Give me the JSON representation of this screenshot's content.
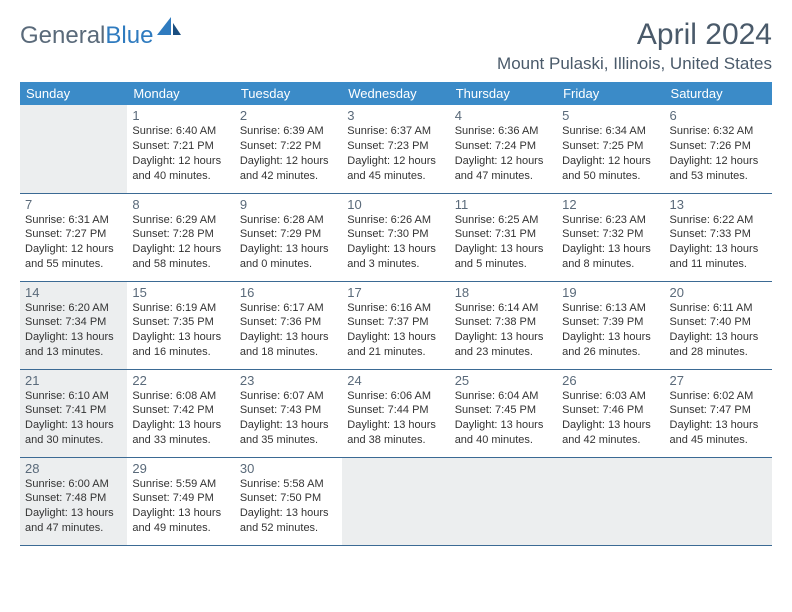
{
  "brand": {
    "part1": "General",
    "part2": "Blue"
  },
  "title": "April 2024",
  "location": "Mount Pulaski, Illinois, United States",
  "colors": {
    "header_bg": "#3b8bc8",
    "header_fg": "#ffffff",
    "border": "#3b6a94",
    "shaded": "#eceeef",
    "text": "#333333",
    "muted": "#5a6a7a",
    "brand_blue": "#2f7bbf"
  },
  "weekdays": [
    "Sunday",
    "Monday",
    "Tuesday",
    "Wednesday",
    "Thursday",
    "Friday",
    "Saturday"
  ],
  "weeks": [
    [
      {
        "empty": true
      },
      {
        "day": "1",
        "sunrise": "Sunrise: 6:40 AM",
        "sunset": "Sunset: 7:21 PM",
        "daylight": "Daylight: 12 hours and 40 minutes."
      },
      {
        "day": "2",
        "sunrise": "Sunrise: 6:39 AM",
        "sunset": "Sunset: 7:22 PM",
        "daylight": "Daylight: 12 hours and 42 minutes."
      },
      {
        "day": "3",
        "sunrise": "Sunrise: 6:37 AM",
        "sunset": "Sunset: 7:23 PM",
        "daylight": "Daylight: 12 hours and 45 minutes."
      },
      {
        "day": "4",
        "sunrise": "Sunrise: 6:36 AM",
        "sunset": "Sunset: 7:24 PM",
        "daylight": "Daylight: 12 hours and 47 minutes."
      },
      {
        "day": "5",
        "sunrise": "Sunrise: 6:34 AM",
        "sunset": "Sunset: 7:25 PM",
        "daylight": "Daylight: 12 hours and 50 minutes."
      },
      {
        "day": "6",
        "sunrise": "Sunrise: 6:32 AM",
        "sunset": "Sunset: 7:26 PM",
        "daylight": "Daylight: 12 hours and 53 minutes."
      }
    ],
    [
      {
        "day": "7",
        "sunrise": "Sunrise: 6:31 AM",
        "sunset": "Sunset: 7:27 PM",
        "daylight": "Daylight: 12 hours and 55 minutes."
      },
      {
        "day": "8",
        "sunrise": "Sunrise: 6:29 AM",
        "sunset": "Sunset: 7:28 PM",
        "daylight": "Daylight: 12 hours and 58 minutes."
      },
      {
        "day": "9",
        "sunrise": "Sunrise: 6:28 AM",
        "sunset": "Sunset: 7:29 PM",
        "daylight": "Daylight: 13 hours and 0 minutes."
      },
      {
        "day": "10",
        "sunrise": "Sunrise: 6:26 AM",
        "sunset": "Sunset: 7:30 PM",
        "daylight": "Daylight: 13 hours and 3 minutes."
      },
      {
        "day": "11",
        "sunrise": "Sunrise: 6:25 AM",
        "sunset": "Sunset: 7:31 PM",
        "daylight": "Daylight: 13 hours and 5 minutes."
      },
      {
        "day": "12",
        "sunrise": "Sunrise: 6:23 AM",
        "sunset": "Sunset: 7:32 PM",
        "daylight": "Daylight: 13 hours and 8 minutes."
      },
      {
        "day": "13",
        "sunrise": "Sunrise: 6:22 AM",
        "sunset": "Sunset: 7:33 PM",
        "daylight": "Daylight: 13 hours and 11 minutes."
      }
    ],
    [
      {
        "day": "14",
        "shaded": true,
        "sunrise": "Sunrise: 6:20 AM",
        "sunset": "Sunset: 7:34 PM",
        "daylight": "Daylight: 13 hours and 13 minutes."
      },
      {
        "day": "15",
        "sunrise": "Sunrise: 6:19 AM",
        "sunset": "Sunset: 7:35 PM",
        "daylight": "Daylight: 13 hours and 16 minutes."
      },
      {
        "day": "16",
        "sunrise": "Sunrise: 6:17 AM",
        "sunset": "Sunset: 7:36 PM",
        "daylight": "Daylight: 13 hours and 18 minutes."
      },
      {
        "day": "17",
        "sunrise": "Sunrise: 6:16 AM",
        "sunset": "Sunset: 7:37 PM",
        "daylight": "Daylight: 13 hours and 21 minutes."
      },
      {
        "day": "18",
        "sunrise": "Sunrise: 6:14 AM",
        "sunset": "Sunset: 7:38 PM",
        "daylight": "Daylight: 13 hours and 23 minutes."
      },
      {
        "day": "19",
        "sunrise": "Sunrise: 6:13 AM",
        "sunset": "Sunset: 7:39 PM",
        "daylight": "Daylight: 13 hours and 26 minutes."
      },
      {
        "day": "20",
        "sunrise": "Sunrise: 6:11 AM",
        "sunset": "Sunset: 7:40 PM",
        "daylight": "Daylight: 13 hours and 28 minutes."
      }
    ],
    [
      {
        "day": "21",
        "shaded": true,
        "sunrise": "Sunrise: 6:10 AM",
        "sunset": "Sunset: 7:41 PM",
        "daylight": "Daylight: 13 hours and 30 minutes."
      },
      {
        "day": "22",
        "sunrise": "Sunrise: 6:08 AM",
        "sunset": "Sunset: 7:42 PM",
        "daylight": "Daylight: 13 hours and 33 minutes."
      },
      {
        "day": "23",
        "sunrise": "Sunrise: 6:07 AM",
        "sunset": "Sunset: 7:43 PM",
        "daylight": "Daylight: 13 hours and 35 minutes."
      },
      {
        "day": "24",
        "sunrise": "Sunrise: 6:06 AM",
        "sunset": "Sunset: 7:44 PM",
        "daylight": "Daylight: 13 hours and 38 minutes."
      },
      {
        "day": "25",
        "sunrise": "Sunrise: 6:04 AM",
        "sunset": "Sunset: 7:45 PM",
        "daylight": "Daylight: 13 hours and 40 minutes."
      },
      {
        "day": "26",
        "sunrise": "Sunrise: 6:03 AM",
        "sunset": "Sunset: 7:46 PM",
        "daylight": "Daylight: 13 hours and 42 minutes."
      },
      {
        "day": "27",
        "sunrise": "Sunrise: 6:02 AM",
        "sunset": "Sunset: 7:47 PM",
        "daylight": "Daylight: 13 hours and 45 minutes."
      }
    ],
    [
      {
        "day": "28",
        "shaded": true,
        "sunrise": "Sunrise: 6:00 AM",
        "sunset": "Sunset: 7:48 PM",
        "daylight": "Daylight: 13 hours and 47 minutes."
      },
      {
        "day": "29",
        "sunrise": "Sunrise: 5:59 AM",
        "sunset": "Sunset: 7:49 PM",
        "daylight": "Daylight: 13 hours and 49 minutes."
      },
      {
        "day": "30",
        "sunrise": "Sunrise: 5:58 AM",
        "sunset": "Sunset: 7:50 PM",
        "daylight": "Daylight: 13 hours and 52 minutes."
      },
      {
        "empty": true
      },
      {
        "empty": true
      },
      {
        "empty": true
      },
      {
        "empty": true
      }
    ]
  ]
}
